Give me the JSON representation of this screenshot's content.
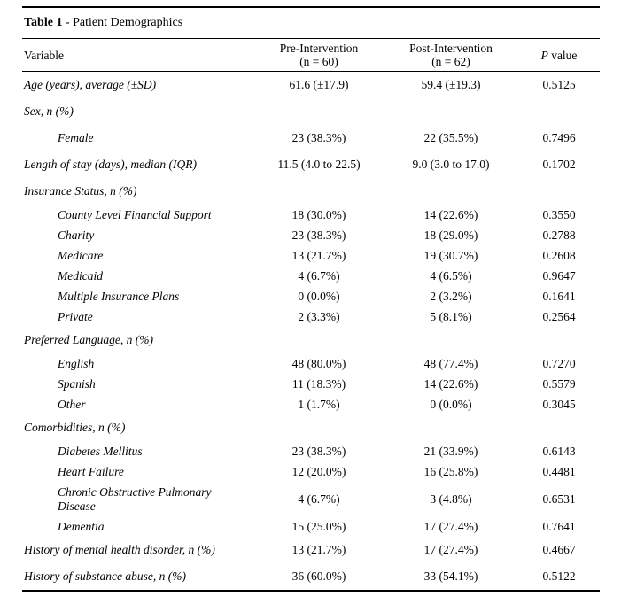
{
  "page": {
    "background": "#ffffff",
    "text_color": "#000000"
  },
  "table": {
    "title_bold": "Table 1",
    "title_rest": " - Patient Demographics",
    "columns": {
      "variable": "Variable",
      "pre_line1": "Pre-Intervention",
      "pre_line2": "(n = 60)",
      "post_line1": "Post-Intervention",
      "post_line2": "(n = 62)",
      "p_italic": "P",
      "p_rest": " value"
    },
    "rows": [
      {
        "type": "top",
        "label": "Age (years), average (±SD)",
        "pre": "61.6 (±17.9)",
        "post": "59.4 (±19.3)",
        "p": "0.5125"
      },
      {
        "type": "top",
        "label": "Sex, n (%)",
        "pre": "",
        "post": "",
        "p": ""
      },
      {
        "type": "sub",
        "wide": true,
        "label": "Female",
        "pre": "23 (38.3%)",
        "post": "22 (35.5%)",
        "p": "0.7496"
      },
      {
        "type": "top",
        "label": "Length of stay (days), median (IQR)",
        "pre": "11.5 (4.0 to 22.5)",
        "post": "9.0 (3.0 to 17.0)",
        "p": "0.1702"
      },
      {
        "type": "top",
        "label": "Insurance Status, n (%)",
        "pre": "",
        "post": "",
        "p": ""
      },
      {
        "type": "sub",
        "label": "County Level Financial Support",
        "pre": "18 (30.0%)",
        "post": "14 (22.6%)",
        "p": "0.3550"
      },
      {
        "type": "sub",
        "label": "Charity",
        "pre": "23 (38.3%)",
        "post": "18 (29.0%)",
        "p": "0.2788"
      },
      {
        "type": "sub",
        "label": "Medicare",
        "pre": "13 (21.7%)",
        "post": "19 (30.7%)",
        "p": "0.2608"
      },
      {
        "type": "sub",
        "label": "Medicaid",
        "pre": "4 (6.7%)",
        "post": "4 (6.5%)",
        "p": "0.9647"
      },
      {
        "type": "sub",
        "label": "Multiple Insurance Plans",
        "pre": "0 (0.0%)",
        "post": "2 (3.2%)",
        "p": "0.1641"
      },
      {
        "type": "sub",
        "label": "Private",
        "pre": "2 (3.3%)",
        "post": "5 (8.1%)",
        "p": "0.2564"
      },
      {
        "type": "top",
        "label": "Preferred Language, n (%)",
        "pre": "",
        "post": "",
        "p": ""
      },
      {
        "type": "sub",
        "label": "English",
        "pre": "48 (80.0%)",
        "post": "48 (77.4%)",
        "p": "0.7270"
      },
      {
        "type": "sub",
        "label": "Spanish",
        "pre": "11 (18.3%)",
        "post": "14 (22.6%)",
        "p": "0.5579"
      },
      {
        "type": "sub",
        "label": "Other",
        "pre": "1 (1.7%)",
        "post": "0 (0.0%)",
        "p": "0.3045"
      },
      {
        "type": "top",
        "label": "Comorbidities, n (%)",
        "pre": "",
        "post": "",
        "p": ""
      },
      {
        "type": "sub",
        "label": "Diabetes Mellitus",
        "pre": "23 (38.3%)",
        "post": "21 (33.9%)",
        "p": "0.6143"
      },
      {
        "type": "sub",
        "label": "Heart Failure",
        "pre": "12 (20.0%)",
        "post": "16 (25.8%)",
        "p": "0.4481"
      },
      {
        "type": "sub",
        "wrap": true,
        "label": "Chronic Obstructive Pulmonary Disease",
        "pre": "4 (6.7%)",
        "post": "3 (4.8%)",
        "p": "0.6531"
      },
      {
        "type": "sub",
        "label": "Dementia",
        "pre": "15 (25.0%)",
        "post": "17 (27.4%)",
        "p": "0.7641"
      },
      {
        "type": "top",
        "label": "History of mental health disorder, n (%)",
        "pre": "13 (21.7%)",
        "post": "17 (27.4%)",
        "p": "0.4667"
      },
      {
        "type": "top",
        "label": "History of substance abuse, n (%)",
        "pre": "36 (60.0%)",
        "post": "33 (54.1%)",
        "p": "0.5122"
      }
    ]
  }
}
